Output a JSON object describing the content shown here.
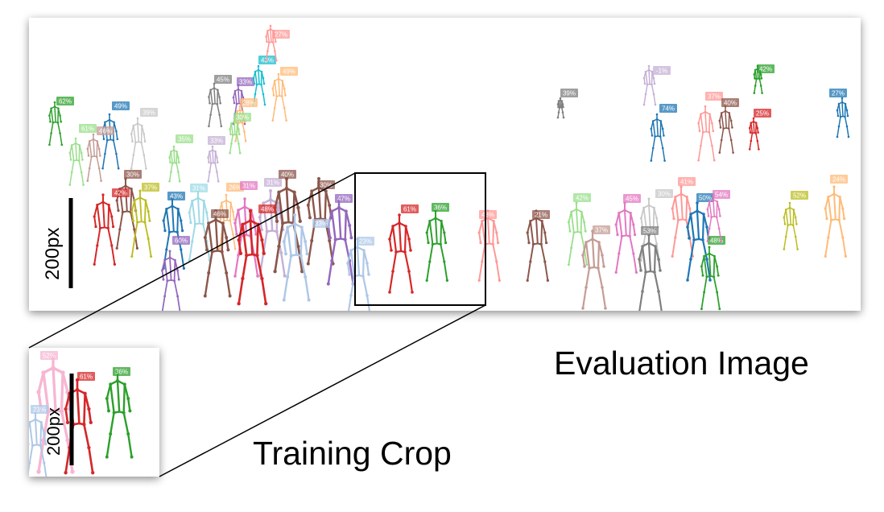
{
  "eval_caption": "Evaluation Image",
  "crop_caption": "Training Crop",
  "eval_scale_label": "200px",
  "crop_scale_label": "200px",
  "colors": {
    "frame": "#000000",
    "palette": [
      "#1f77b4",
      "#ff7f0e",
      "#2ca02c",
      "#d62728",
      "#9467bd",
      "#8c564b",
      "#e377c2",
      "#7f7f7f",
      "#bcbd22",
      "#17becf",
      "#aec7e8",
      "#ffbb78",
      "#98df8a",
      "#ff9896",
      "#c5b0d5",
      "#c49c94",
      "#f7b6d2",
      "#c7c7c7",
      "#dbdb8d",
      "#9edae5"
    ]
  },
  "eval_people": [
    {
      "label": "62%",
      "color": "#2ca02c"
    },
    {
      "label": "61%",
      "color": "#98df8a"
    },
    {
      "label": "49%",
      "color": "#1f77b4"
    },
    {
      "label": "46%",
      "color": "#c49c94"
    },
    {
      "label": "39%",
      "color": "#c7c7c7"
    },
    {
      "label": "45%",
      "color": "#7f7f7f"
    },
    {
      "label": "33%",
      "color": "#9467bd"
    },
    {
      "label": "43%",
      "color": "#17becf"
    },
    {
      "label": "49%",
      "color": "#ffbb78"
    },
    {
      "label": "27%",
      "color": "#ff9896"
    },
    {
      "label": "28%",
      "color": "#ffbb78"
    },
    {
      "label": "30%",
      "color": "#98df8a"
    },
    {
      "label": "35%",
      "color": "#98df8a"
    },
    {
      "label": "33%",
      "color": "#c5b0d5"
    },
    {
      "label": "30%",
      "color": "#8c564b"
    },
    {
      "label": "42%",
      "color": "#d62728"
    },
    {
      "label": "37%",
      "color": "#bcbd22"
    },
    {
      "label": "43%",
      "color": "#1f77b4"
    },
    {
      "label": "31%",
      "color": "#9edae5"
    },
    {
      "label": "26%",
      "color": "#ffbb78"
    },
    {
      "label": "31%",
      "color": "#e377c2"
    },
    {
      "label": "31%",
      "color": "#c5b0d5"
    },
    {
      "label": "40%",
      "color": "#8c564b"
    },
    {
      "label": "48%",
      "color": "#d62728"
    },
    {
      "label": "30%",
      "color": "#8c564b"
    },
    {
      "label": "47%",
      "color": "#9467bd"
    },
    {
      "label": "46%",
      "color": "#8c564b"
    },
    {
      "label": "60%",
      "color": "#9467bd"
    },
    {
      "label": "33%",
      "color": "#aec7e8"
    },
    {
      "label": "23%",
      "color": "#aec7e8"
    },
    {
      "label": "61%",
      "color": "#d62728"
    },
    {
      "label": "36%",
      "color": "#2ca02c"
    },
    {
      "label": "48%",
      "color": "#ff9896"
    },
    {
      "label": "21%",
      "color": "#8c564b"
    },
    {
      "label": "42%",
      "color": "#98df8a"
    },
    {
      "label": "37%",
      "color": "#c49c94"
    },
    {
      "label": "45%",
      "color": "#e377c2"
    },
    {
      "label": "30%",
      "color": "#c7c7c7"
    },
    {
      "label": "53%",
      "color": "#7f7f7f"
    },
    {
      "label": "41%",
      "color": "#ff9896"
    },
    {
      "label": "50%",
      "color": "#1f77b4"
    },
    {
      "label": "48%",
      "color": "#2ca02c"
    },
    {
      "label": "39%",
      "color": "#7f7f7f"
    },
    {
      "label": "-1%",
      "color": "#c5b0d5"
    },
    {
      "label": "74%",
      "color": "#1f77b4"
    },
    {
      "label": "37%",
      "color": "#ff9896"
    },
    {
      "label": "40%",
      "color": "#8c564b"
    },
    {
      "label": "25%",
      "color": "#d62728"
    },
    {
      "label": "42%",
      "color": "#2ca02c"
    },
    {
      "label": "27%",
      "color": "#1f77b4"
    },
    {
      "label": "52%",
      "color": "#bcbd22"
    },
    {
      "label": "54%",
      "color": "#e377c2"
    },
    {
      "label": "24%",
      "color": "#ffbb78"
    }
  ],
  "crop_people": [
    {
      "label": "52%",
      "color": "#f7b6d2"
    },
    {
      "label": "61%",
      "color": "#d62728"
    },
    {
      "label": "36%",
      "color": "#2ca02c"
    },
    {
      "label": "23%",
      "color": "#aec7e8"
    }
  ]
}
